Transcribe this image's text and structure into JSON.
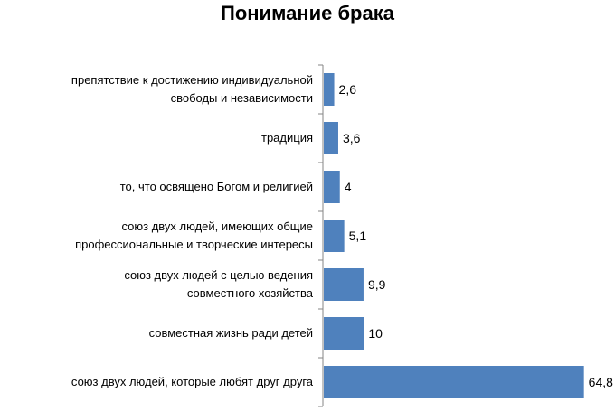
{
  "colors": {
    "bar": "#4F81BD",
    "axis": "#868686",
    "text": "#000000"
  },
  "chart_data": {
    "type": "bar",
    "orientation": "horizontal",
    "title": "Понимание брака",
    "xlabel": "",
    "ylabel": "",
    "grid": false,
    "legend": "none",
    "xlim": [
      0,
      66
    ],
    "categories": [
      "препятствие к достижению индивидуальной свободы и независимости",
      "традиция",
      "то, что освящено Богом и религией",
      "союз двух людей, имеющих общие профессиональные и творческие интересы",
      "союз двух людей с целью ведения совместного хозяйства",
      "совместная жизнь ради детей",
      "союз двух людей, которые любят друг друга"
    ],
    "category_lines": [
      [
        "препятствие к достижению индивидуальной",
        "свободы и независимости"
      ],
      [
        "традиция"
      ],
      [
        "то, что освящено Богом и религией"
      ],
      [
        "союз двух людей, имеющих общие",
        "профессиональные и творческие интересы"
      ],
      [
        "союз двух людей с целью ведения",
        "совместного хозяйства"
      ],
      [
        "совместная жизнь ради детей"
      ],
      [
        "союз двух людей, которые любят друг друга"
      ]
    ],
    "values": [
      2.6,
      3.6,
      4,
      5.1,
      9.9,
      10,
      64.8
    ],
    "data_labels": [
      "2,6",
      "3,6",
      "4",
      "5,1",
      "9,9",
      "10",
      "64,8"
    ]
  }
}
